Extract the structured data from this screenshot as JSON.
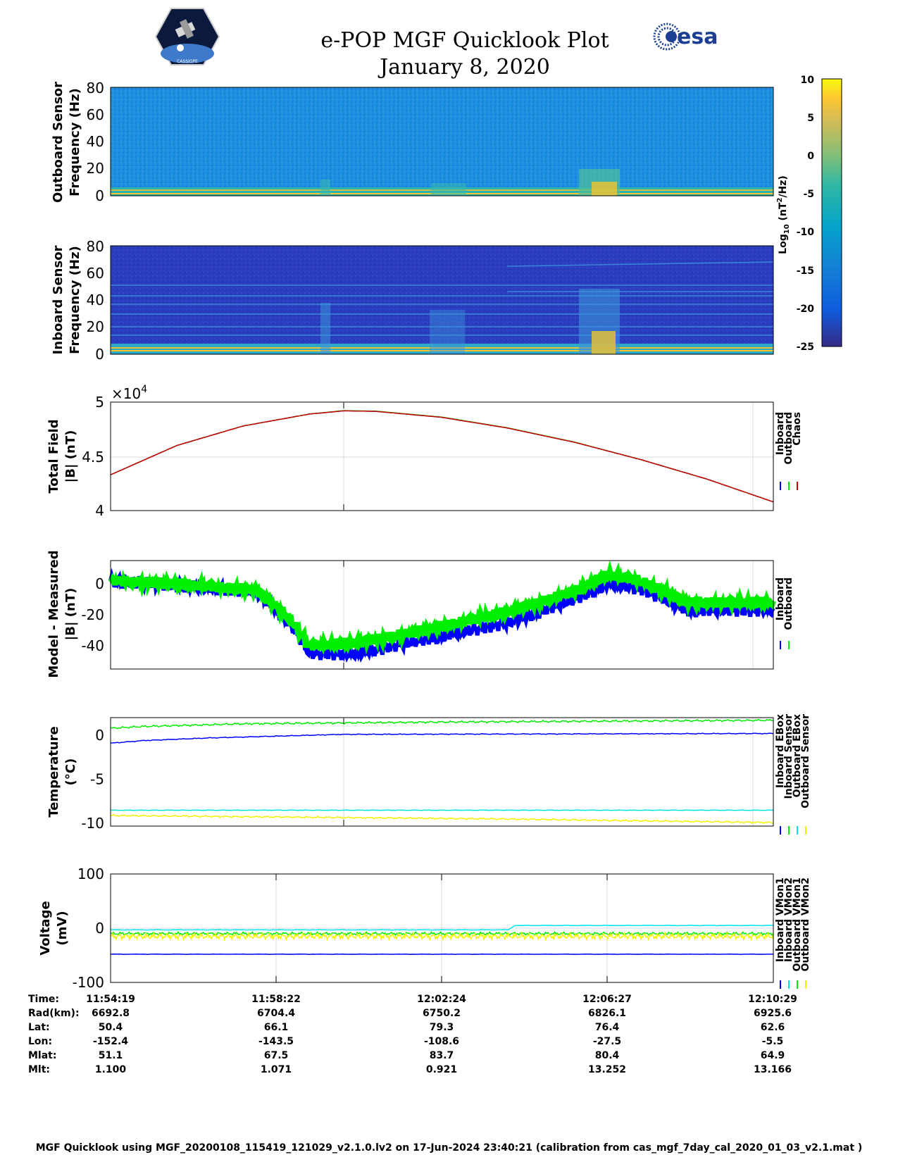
{
  "header": {
    "title_line1": "e-POP MGF Quicklook Plot",
    "title_line2": "January 8, 2020",
    "logo_left_text": "CASSIOPE",
    "logo_right_text": "esa"
  },
  "colors": {
    "inboard": "#0000ff",
    "outboard": "#00ee00",
    "chaos": "#cc0000",
    "cyan": "#00e5ee",
    "yellow": "#f2f200",
    "grid": "#d9d9d9"
  },
  "chart_data": [
    {
      "type": "heatmap",
      "panel": "outboard-spectrogram",
      "ylabel_line1": "Outboard Sensor",
      "ylabel_line2": "Frequency (Hz)",
      "ylim": [
        0,
        80
      ],
      "yticks": [
        "80",
        "60",
        "40",
        "20",
        "0"
      ],
      "colorbar": {
        "label": "Log10 (nT^2/Hz)",
        "label_base": "Log",
        "label_sub": "10",
        "label_rest_1": " (nT",
        "label_sup": "2",
        "label_rest_2": "/Hz)",
        "range": [
          -25,
          10
        ],
        "ticks": [
          "10",
          "5",
          "0",
          "-5",
          "-10",
          "-15",
          "-20",
          "-25"
        ]
      }
    },
    {
      "type": "heatmap",
      "panel": "inboard-spectrogram",
      "ylabel_line1": "Inboard Sensor",
      "ylabel_line2": "Frequency (Hz)",
      "ylim": [
        0,
        80
      ],
      "yticks": [
        "80",
        "60",
        "40",
        "20",
        "0"
      ]
    },
    {
      "type": "line",
      "panel": "total-field",
      "ylabel_line1": "Total Field",
      "ylabel_line2": "|B| (nT)",
      "ylim": [
        4.0,
        5.0
      ],
      "yticks": [
        "5",
        "4.5",
        "4"
      ],
      "scale_base": "×10",
      "scale_exp": "4",
      "legend": [
        "Inboard",
        "Outboard",
        "Chaos"
      ],
      "series": [
        {
          "name": "Inboard",
          "x": [
            0,
            0.1,
            0.2,
            0.3,
            0.352,
            0.4,
            0.5,
            0.6,
            0.7,
            0.8,
            0.9,
            1.0
          ],
          "values": [
            4.33,
            4.6,
            4.78,
            4.89,
            4.92,
            4.915,
            4.86,
            4.76,
            4.63,
            4.47,
            4.29,
            4.08
          ]
        },
        {
          "name": "Outboard",
          "x": [
            0,
            0.1,
            0.2,
            0.3,
            0.352,
            0.4,
            0.5,
            0.6,
            0.7,
            0.8,
            0.9,
            1.0
          ],
          "values": [
            4.33,
            4.6,
            4.78,
            4.89,
            4.922,
            4.917,
            4.862,
            4.762,
            4.632,
            4.47,
            4.29,
            4.08
          ]
        },
        {
          "name": "Chaos",
          "x": [
            0,
            0.1,
            0.2,
            0.3,
            0.352,
            0.4,
            0.5,
            0.6,
            0.7,
            0.8,
            0.9,
            1.0
          ],
          "values": [
            4.33,
            4.6,
            4.78,
            4.89,
            4.92,
            4.915,
            4.86,
            4.76,
            4.63,
            4.47,
            4.29,
            4.08
          ]
        }
      ]
    },
    {
      "type": "line",
      "panel": "model-measured",
      "ylabel_line1": "Model - Measured",
      "ylabel_line2": "|B| (nT)",
      "ylim": [
        -55,
        15
      ],
      "yticks": [
        "0",
        "-20",
        "-40"
      ],
      "ytick_values": [
        0,
        -20,
        -40
      ],
      "legend": [
        "Inboard",
        "Outboard"
      ],
      "series": [
        {
          "name": "Inboard",
          "x": [
            0,
            0.1,
            0.22,
            0.27,
            0.3,
            0.37,
            0.45,
            0.6,
            0.7,
            0.75,
            0.8,
            0.87,
            1.0
          ],
          "values": [
            2,
            -1,
            -5,
            -25,
            -45,
            -45,
            -38,
            -25,
            -10,
            0,
            -3,
            -17,
            -17
          ]
        },
        {
          "name": "Outboard",
          "x": [
            0,
            0.1,
            0.22,
            0.27,
            0.3,
            0.37,
            0.45,
            0.6,
            0.7,
            0.75,
            0.8,
            0.87,
            1.0
          ],
          "values": [
            2,
            0,
            -4,
            -22,
            -40,
            -38,
            -32,
            -18,
            -5,
            6,
            2,
            -12,
            -12
          ]
        }
      ]
    },
    {
      "type": "line",
      "panel": "temperature",
      "ylabel_line1": "Temperature",
      "ylabel_line2": "(°C)",
      "ylim": [
        -10.3,
        2
      ],
      "yticks": [
        "0",
        "-5",
        "-10"
      ],
      "ytick_values": [
        0,
        -5,
        -10
      ],
      "legend": [
        "Inboard EBox",
        "Inboard Sensor",
        "Outboard EBox",
        "Outboard Sensor"
      ],
      "series": [
        {
          "name": "Inboard EBox",
          "x": [
            0,
            0.05,
            0.15,
            0.35,
            1.0
          ],
          "values": [
            -0.9,
            -0.6,
            -0.3,
            0.1,
            0.2
          ]
        },
        {
          "name": "Inboard Sensor",
          "x": [
            0,
            0.05,
            0.2,
            0.5,
            1.0
          ],
          "values": [
            0.8,
            1.0,
            1.3,
            1.5,
            1.7
          ]
        },
        {
          "name": "Outboard EBox",
          "x": [
            0,
            1.0
          ],
          "values": [
            -8.5,
            -8.5
          ]
        },
        {
          "name": "Outboard Sensor",
          "x": [
            0,
            0.3,
            0.6,
            1.0
          ],
          "values": [
            -9.1,
            -9.3,
            -9.5,
            -9.9
          ]
        }
      ]
    },
    {
      "type": "line",
      "panel": "voltage",
      "ylabel_line1": "Voltage",
      "ylabel_line2": "(mV)",
      "ylim": [
        -100,
        100
      ],
      "yticks": [
        "100",
        "0",
        "-100"
      ],
      "ytick_values": [
        100,
        0,
        -100
      ],
      "legend": [
        "Inboard VMon1",
        "Inboard VMon2",
        "Outboard VMon1",
        "Outboard VMon2"
      ],
      "series": [
        {
          "name": "Inboard VMon1",
          "x": [
            0,
            1.0
          ],
          "values": [
            -48,
            -48
          ]
        },
        {
          "name": "Inboard VMon2",
          "x": [
            0,
            0.6,
            0.61,
            1.0
          ],
          "values": [
            -3,
            -3,
            5,
            5
          ]
        },
        {
          "name": "Outboard VMon1",
          "x": [
            0,
            1.0
          ],
          "values": [
            -10,
            -10
          ]
        },
        {
          "name": "Outboard VMon2",
          "x": [
            0,
            1.0
          ],
          "values": [
            -15,
            -15
          ]
        }
      ]
    }
  ],
  "info_table": {
    "labels": [
      "Time:",
      "Rad(km):",
      "Lat:",
      "Lon:",
      "Mlat:",
      "Mlt:"
    ],
    "columns": [
      {
        "time": "11:54:19",
        "rad": "6692.8",
        "lat": "50.4",
        "lon": "-152.4",
        "mlat": "51.1",
        "mlt": "1.100"
      },
      {
        "time": "11:58:22",
        "rad": "6704.4",
        "lat": "66.1",
        "lon": "-143.5",
        "mlat": "67.5",
        "mlt": "1.071"
      },
      {
        "time": "12:02:24",
        "rad": "6750.2",
        "lat": "79.3",
        "lon": "-108.6",
        "mlat": "83.7",
        "mlt": "0.921"
      },
      {
        "time": "12:06:27",
        "rad": "6826.1",
        "lat": "76.4",
        "lon": "-27.5",
        "mlat": "80.4",
        "mlt": "13.252"
      },
      {
        "time": "12:10:29",
        "rad": "6925.6",
        "lat": "62.6",
        "lon": "-5.5",
        "mlat": "64.9",
        "mlt": "13.166"
      }
    ]
  },
  "footer": "MGF Quicklook using MGF_20200108_115419_121029_v2.1.0.lv2 on 17-Jun-2024 23:40:21 (calibration from cas_mgf_7day_cal_2020_01_03_v2.1.mat )"
}
